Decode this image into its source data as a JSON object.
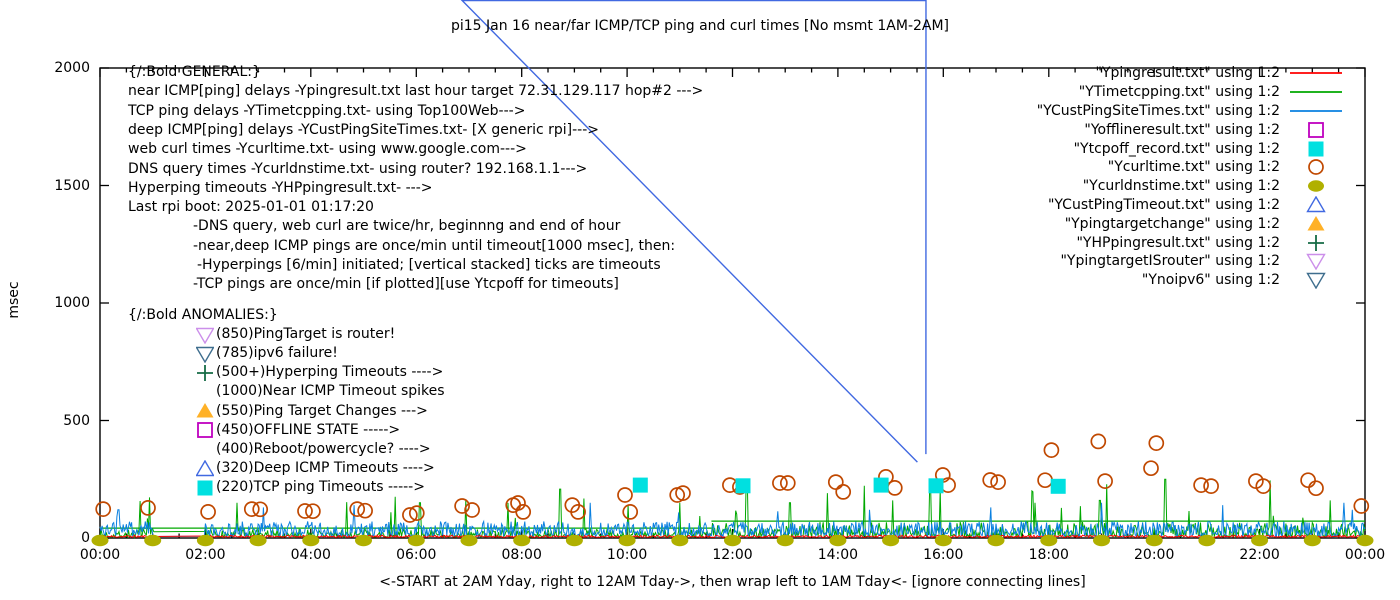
{
  "title": "pi15 Jan 16  near/far ICMP/TCP ping and curl times [No msmt 1AM-2AM]",
  "y_axis_label": "msec",
  "x_caption": "<-START at 2AM Yday, right to 12AM Tday->, then wrap left to 1AM Tday<- [ignore connecting lines]",
  "colors": {
    "red": "#ff0000",
    "green": "#00a800",
    "blue": "#0a80e0",
    "magenta": "#bf00bf",
    "cyan": "#00e0e0",
    "orange_brown": "#c04800",
    "olive": "#b0b000",
    "royal": "#4169e1",
    "gold": "#ffb127",
    "dark_green": "#156b45",
    "violet": "#cc8fea",
    "steel": "#3f6e8e",
    "axis": "#000000"
  },
  "legend": {
    "items": [
      {
        "label": "\"Ypingresult.txt\" using 1:2",
        "sample": "line",
        "color": "red"
      },
      {
        "label": "\"YTimetcpping.txt\" using 1:2",
        "sample": "line",
        "color": "green"
      },
      {
        "label": "\"YCustPingSiteTimes.txt\" using 1:2",
        "sample": "line",
        "color": "blue"
      },
      {
        "label": "\"Yofflineresult.txt\" using 1:2",
        "sample": "square-open",
        "color": "magenta"
      },
      {
        "label": "\"Ytcpoff_record.txt\" using 1:2",
        "sample": "square-filled",
        "color": "cyan"
      },
      {
        "label": "\"Ycurltime.txt\" using 1:2",
        "sample": "circle-open",
        "color": "orange_brown"
      },
      {
        "label": "\"Ycurldnstime.txt\" using 1:2",
        "sample": "circle-filled",
        "color": "olive"
      },
      {
        "label": "\"YCustPingTimeout.txt\" using 1:2",
        "sample": "triangle-up-open",
        "color": "royal"
      },
      {
        "label": "\"Ypingtargetchange\" using 1:2",
        "sample": "triangle-up-filled",
        "color": "gold"
      },
      {
        "label": "\"YHPpingresult.txt\" using 1:2",
        "sample": "plus",
        "color": "dark_green"
      },
      {
        "label": "\"YpingtargetISrouter\" using 1:2",
        "sample": "triangle-down-open",
        "color": "violet"
      },
      {
        "label": "\"Ynoipv6\" using 1:2",
        "sample": "triangle-down-open",
        "color": "steel"
      }
    ]
  },
  "annotations": {
    "general": {
      "lines": [
        {
          "indent": 0,
          "text": "{/:Bold GENERAL:}"
        },
        {
          "indent": 0,
          "text": "near ICMP[ping] delays -Ypingresult.txt last hour target 72.31.129.117 hop#2 --->"
        },
        {
          "indent": 0,
          "text": "TCP ping delays -YTimetcpping.txt- using Top100Web--->"
        },
        {
          "indent": 0,
          "text": "deep ICMP[ping] delays -YCustPingSiteTimes.txt- [X generic rpi]--->"
        },
        {
          "indent": 0,
          "text": "web curl times -Ycurltime.txt- using www.google.com--->"
        },
        {
          "indent": 0,
          "text": "DNS query times -Ycurldnstime.txt- using router? 192.168.1.1--->"
        },
        {
          "indent": 0,
          "text": "Hyperping timeouts -YHPpingresult.txt- --->"
        },
        {
          "indent": 0,
          "text": "Last rpi boot: 2025-01-01 01:17:20"
        },
        {
          "indent": 1,
          "text": "-DNS query, web curl are twice/hr, beginnng and end of hour"
        },
        {
          "indent": 1,
          "text": "-near,deep ICMP pings are once/min until timeout[1000 msec], then:"
        },
        {
          "indent": 2,
          "text": "-Hyperpings [6/min] initiated; [vertical stacked] ticks are timeouts"
        },
        {
          "indent": 1,
          "text": "-TCP pings are once/min [if plotted][use Ytcpoff for timeouts]"
        }
      ]
    },
    "anomalies": {
      "heading": "{/:Bold ANOMALIES:}",
      "items": [
        {
          "marker": "triangle-down-open",
          "color": "violet",
          "text": "(850)PingTarget is router!"
        },
        {
          "marker": "triangle-down-open",
          "color": "steel",
          "text": "(785)ipv6 failure!"
        },
        {
          "marker": "plus",
          "color": "dark_green",
          "text": "(500+)Hyperping Timeouts ---->"
        },
        {
          "marker": "none",
          "color": "",
          "text": "(1000)Near ICMP Timeout spikes"
        },
        {
          "marker": "triangle-up-filled",
          "color": "gold",
          "text": "(550)Ping Target Changes --->"
        },
        {
          "marker": "square-open",
          "color": "magenta",
          "text": "(450)OFFLINE STATE ----->"
        },
        {
          "marker": "none",
          "color": "",
          "text": "(400)Reboot/powercycle? ---->"
        },
        {
          "marker": "triangle-up-open",
          "color": "royal",
          "text": "(320)Deep ICMP Timeouts ---->"
        },
        {
          "marker": "square-filled",
          "color": "cyan",
          "text": "(220)TCP ping Timeouts ----->"
        }
      ]
    }
  },
  "chart_data": {
    "type": "line+scatter",
    "title": "pi15 Jan 16  near/far ICMP/TCP ping and curl times [No msmt 1AM-2AM]",
    "ylabel": "msec",
    "ylim": [
      0,
      2000
    ],
    "y_ticks": [
      0,
      500,
      1000,
      1500,
      2000
    ],
    "x_range_hours": [
      0,
      24
    ],
    "x_ticks": [
      "00:00",
      "02:00",
      "04:00",
      "06:00",
      "08:00",
      "10:00",
      "12:00",
      "14:00",
      "16:00",
      "18:00",
      "20:00",
      "22:00",
      "00:00"
    ],
    "grid": false,
    "legend_position": "top-right",
    "measurement_gap_hours": [
      1.0,
      2.0
    ],
    "series": [
      {
        "name": "YTimetcpping.txt",
        "style": "noisy-line",
        "color": "green",
        "seed": 7,
        "base": 4,
        "amp": 36,
        "base2": 6,
        "amp2": 62,
        "step_at": 11.6,
        "pow": 2.2,
        "cap_segments": [
          [
            0,
            11.6,
            42
          ],
          [
            11.6,
            24,
            72
          ]
        ],
        "spike_prob": 0.018,
        "spike_min": 80,
        "spike_max": 230,
        "major_spikes": [
          [
            1.27,
            235
          ],
          [
            2.6,
            150
          ],
          [
            6.07,
            150
          ],
          [
            6.94,
            160
          ],
          [
            8.73,
            208
          ],
          [
            10.02,
            140
          ],
          [
            11.0,
            150
          ],
          [
            12.27,
            250
          ],
          [
            13.09,
            150
          ],
          [
            13.8,
            191
          ],
          [
            15.75,
            205
          ],
          [
            17.74,
            150
          ],
          [
            18.97,
            160
          ],
          [
            20.21,
            250
          ],
          [
            22.2,
            245
          ],
          [
            23.34,
            160
          ]
        ]
      },
      {
        "name": "YCustPingSiteTimes.txt",
        "style": "noisy-line",
        "color": "blue",
        "seed": 3,
        "base": 5,
        "amp": 66,
        "pow": 1.3,
        "spike_prob": 0.007,
        "spike_min": 90,
        "spike_max": 155,
        "major_spikes": [
          [
            0.35,
            120
          ],
          [
            3.1,
            130
          ],
          [
            4.82,
            140
          ],
          [
            9.3,
            150
          ],
          [
            14.6,
            120
          ],
          [
            16.9,
            130
          ],
          [
            19.0,
            150
          ],
          [
            21.3,
            140
          ],
          [
            23.6,
            150
          ]
        ]
      },
      {
        "name": "Ypingresult.txt",
        "style": "noisy-line",
        "color": "red",
        "seed": 11,
        "base": 3,
        "amp": 9,
        "pow": 1.5,
        "spike_prob": 0,
        "spike_min": 0,
        "spike_max": 0,
        "major_spikes": []
      }
    ],
    "scatter": {
      "curl_points": [
        [
          0.06,
          123
        ],
        [
          0.91,
          128
        ],
        [
          2.05,
          111
        ],
        [
          2.88,
          123
        ],
        [
          3.04,
          122
        ],
        [
          3.89,
          115
        ],
        [
          4.04,
          114
        ],
        [
          4.88,
          123
        ],
        [
          5.03,
          116
        ],
        [
          5.88,
          98
        ],
        [
          6.01,
          106
        ],
        [
          6.87,
          136
        ],
        [
          7.06,
          119
        ],
        [
          7.84,
          140
        ],
        [
          7.93,
          149
        ],
        [
          8.03,
          111
        ],
        [
          8.96,
          140
        ],
        [
          9.07,
          111
        ],
        [
          9.96,
          183
        ],
        [
          10.06,
          111
        ],
        [
          10.95,
          183
        ],
        [
          11.06,
          191
        ],
        [
          11.95,
          225
        ],
        [
          12.14,
          217
        ],
        [
          12.9,
          234
        ],
        [
          13.05,
          234
        ],
        [
          13.96,
          238
        ],
        [
          14.1,
          196
        ],
        [
          14.91,
          260
        ],
        [
          15.08,
          213
        ],
        [
          15.99,
          268
        ],
        [
          16.09,
          225
        ],
        [
          16.89,
          247
        ],
        [
          17.04,
          238
        ],
        [
          17.93,
          246
        ],
        [
          18.05,
          374
        ],
        [
          18.94,
          411
        ],
        [
          19.07,
          242
        ],
        [
          19.94,
          297
        ],
        [
          20.04,
          404
        ],
        [
          20.89,
          225
        ],
        [
          21.08,
          221
        ],
        [
          21.93,
          242
        ],
        [
          22.07,
          221
        ],
        [
          22.92,
          246
        ],
        [
          23.07,
          212
        ],
        [
          23.93,
          136
        ]
      ],
      "dns_hours": [
        0,
        1,
        2,
        3,
        4,
        5,
        6,
        7,
        8,
        9,
        10,
        11,
        12,
        13,
        14,
        15,
        16,
        17,
        18,
        19,
        20,
        21,
        22,
        23,
        24
      ],
      "dns_value": 2,
      "tcpoff_points": [
        [
          10.25,
          225
        ],
        [
          12.2,
          222
        ],
        [
          14.82,
          225
        ],
        [
          15.86,
          222
        ],
        [
          18.18,
          220
        ]
      ],
      "deep_timeout_points": [
        [
          15.67,
          323
        ]
      ]
    }
  }
}
